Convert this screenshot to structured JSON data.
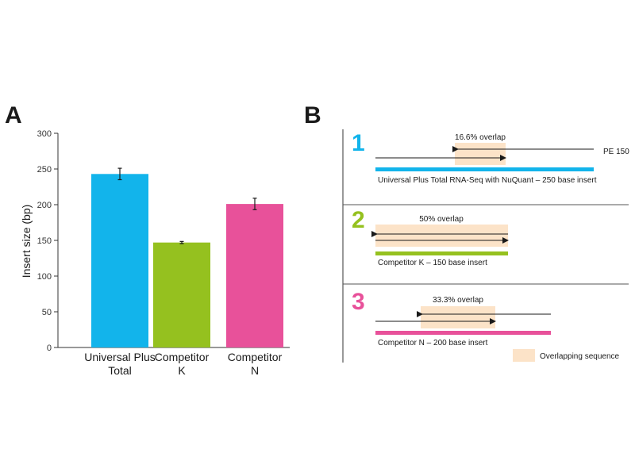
{
  "panels": {
    "a": "A",
    "b": "B"
  },
  "chart_data": {
    "type": "bar",
    "categories": [
      "Universal Plus Total",
      "Competitor K",
      "Competitor N"
    ],
    "category_lines": [
      [
        "Universal Plus",
        "Total"
      ],
      [
        "Competitor",
        "K"
      ],
      [
        "Competitor",
        "N"
      ]
    ],
    "values": [
      243,
      147,
      201
    ],
    "errors": [
      8,
      1.5,
      8
    ],
    "colors": [
      "#12b4eb",
      "#95c11f",
      "#e8519a"
    ],
    "ylabel": "Insert size (bp)",
    "ylim": [
      0,
      300
    ],
    "yticks": [
      0,
      50,
      100,
      150,
      200,
      250,
      300
    ],
    "grid": false
  },
  "diagram": {
    "overlap_color": "#fce3c8",
    "read_label": "PE 150",
    "legend_label": "Overlapping sequence",
    "items": [
      {
        "number": "1",
        "color": "#12b4eb",
        "overlap_label": "16.6% overlap",
        "insert_label": "Universal Plus Total RNA-Seq with NuQuant – 250 base insert"
      },
      {
        "number": "2",
        "color": "#95c11f",
        "overlap_label": "50% overlap",
        "insert_label": "Competitor K – 150 base insert"
      },
      {
        "number": "3",
        "color": "#e8519a",
        "overlap_label": "33.3% overlap",
        "insert_label": "Competitor N – 200 base insert"
      }
    ]
  }
}
